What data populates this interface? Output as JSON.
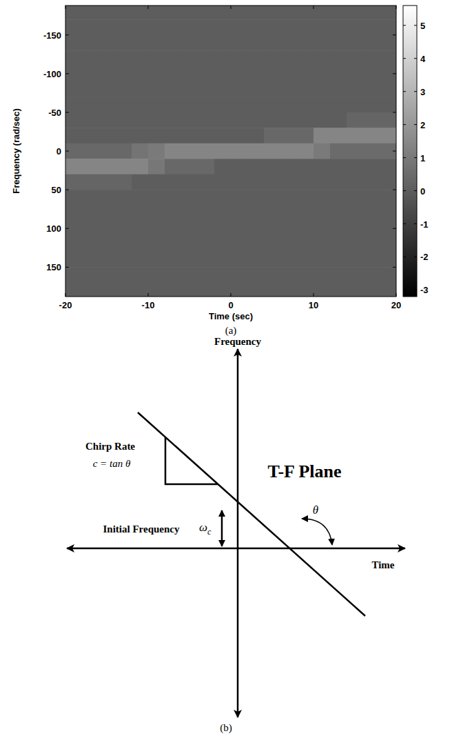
{
  "chart_data": {
    "type": "heatmap",
    "x_label": "Time (sec)",
    "y_label": "Frequency (rad/sec)",
    "caption": "(a)",
    "xlim": [
      -20,
      20
    ],
    "xticks": [
      -20,
      -10,
      0,
      10,
      20
    ],
    "ylim": [
      188,
      -188
    ],
    "yticks": [
      -150,
      -100,
      -50,
      0,
      50,
      100,
      150
    ],
    "x_bins": [
      -20,
      -18,
      -16,
      -14,
      -12,
      -10,
      -8,
      -6,
      -4,
      -2,
      0,
      2,
      4,
      6,
      8,
      10,
      12,
      14,
      16,
      18,
      20
    ],
    "y_bins": [
      -190,
      -170,
      -150,
      -130,
      -110,
      -90,
      -70,
      -50,
      -30,
      -10,
      10,
      30,
      50,
      70,
      90,
      110,
      130,
      150,
      170,
      190
    ],
    "cells": [
      [
        0,
        0,
        0,
        0,
        0,
        0,
        0,
        0,
        0,
        0,
        0,
        0,
        0,
        0,
        0,
        0,
        0,
        0,
        0,
        0
      ],
      [
        0,
        0,
        0,
        0,
        0,
        0,
        0,
        0,
        0,
        0,
        0,
        0,
        0,
        0,
        0,
        0,
        0,
        0,
        0,
        0
      ],
      [
        0,
        0,
        0,
        0,
        0,
        0,
        0,
        0,
        0,
        0,
        0,
        0,
        0,
        0,
        0,
        0,
        0,
        0,
        0,
        0
      ],
      [
        0,
        0,
        0,
        0,
        0,
        0,
        0,
        0,
        0,
        0,
        0,
        0,
        0,
        0,
        0,
        0,
        0,
        0,
        0,
        0
      ],
      [
        0,
        0,
        0,
        0,
        0,
        0,
        0,
        0,
        0,
        0,
        0,
        0,
        0,
        0,
        0,
        0,
        0,
        0,
        0,
        0
      ],
      [
        0,
        0,
        0,
        0,
        0,
        0,
        0,
        0,
        0,
        0,
        0,
        0,
        0,
        0,
        0,
        0,
        0,
        0,
        0,
        0
      ],
      [
        0,
        0,
        0,
        0,
        0,
        0,
        0,
        0,
        0,
        0,
        0,
        0,
        0,
        0,
        0,
        0,
        0,
        0,
        0,
        0
      ],
      [
        0,
        0,
        0,
        0,
        0,
        0,
        0,
        0,
        0,
        0,
        0,
        0,
        0,
        0,
        0,
        0,
        0,
        0.3,
        0.3,
        0.3
      ],
      [
        0,
        0,
        0,
        0,
        0,
        0,
        0,
        0,
        0,
        0,
        0,
        0,
        0.4,
        0.4,
        0.4,
        1.4,
        1.4,
        1.4,
        1.4,
        1.4
      ],
      [
        0.4,
        0.4,
        0.4,
        0.4,
        0.8,
        1.0,
        1.4,
        1.4,
        1.4,
        1.4,
        1.4,
        1.4,
        1.4,
        1.4,
        1.4,
        1.0,
        0.5,
        0.5,
        0.5,
        0.5
      ],
      [
        1.4,
        1.4,
        1.4,
        1.4,
        1.4,
        0.9,
        0.4,
        0.4,
        0.4,
        0,
        0,
        0,
        0,
        0,
        0,
        0,
        0,
        0,
        0,
        0
      ],
      [
        0.3,
        0.3,
        0.3,
        0.3,
        0,
        0,
        0,
        0,
        0,
        0,
        0,
        0,
        0,
        0,
        0,
        0,
        0,
        0,
        0,
        0
      ],
      [
        0,
        0,
        0,
        0,
        0,
        0,
        0,
        0,
        0,
        0,
        0,
        0,
        0,
        0,
        0,
        0,
        0,
        0,
        0,
        0
      ],
      [
        0,
        0,
        0,
        0,
        0,
        0,
        0,
        0,
        0,
        0,
        0,
        0,
        0,
        0,
        0,
        0,
        0,
        0,
        0,
        0
      ],
      [
        0,
        0,
        0,
        0,
        0,
        0,
        0,
        0,
        0,
        0,
        0,
        0,
        0,
        0,
        0,
        0,
        0,
        0,
        0,
        0
      ],
      [
        0,
        0,
        0,
        0,
        0,
        0,
        0,
        0,
        0,
        0,
        0,
        0,
        0,
        0,
        0,
        0,
        0,
        0,
        0,
        0
      ],
      [
        0,
        0,
        0,
        0,
        0,
        0,
        0,
        0,
        0,
        0,
        0,
        0,
        0,
        0,
        0,
        0,
        0,
        0,
        0,
        0
      ],
      [
        0,
        0,
        0,
        0,
        0,
        0,
        0,
        0,
        0,
        0,
        0,
        0,
        0,
        0,
        0,
        0,
        0,
        0,
        0,
        0
      ],
      [
        0,
        0,
        0,
        0,
        0,
        0,
        0,
        0,
        0,
        0,
        0,
        0,
        0,
        0,
        0,
        0,
        0,
        0,
        0,
        0
      ]
    ],
    "color_range": [
      -3.2,
      5.6
    ],
    "color_ticks": [
      -3,
      -2,
      -1,
      0,
      1,
      2,
      3,
      4,
      5
    ]
  },
  "diagram": {
    "caption": "(b)",
    "frequency_axis": "Frequency",
    "time_axis": "Time",
    "plane_label": "T-F Plane",
    "chirp_rate_label": "Chirp Rate",
    "chirp_rate_formula": "c = tan θ",
    "initial_frequency_label": "Initial Frequency",
    "initial_frequency_symbol": "ω",
    "initial_frequency_subscript": "c",
    "angle_label": "θ"
  }
}
